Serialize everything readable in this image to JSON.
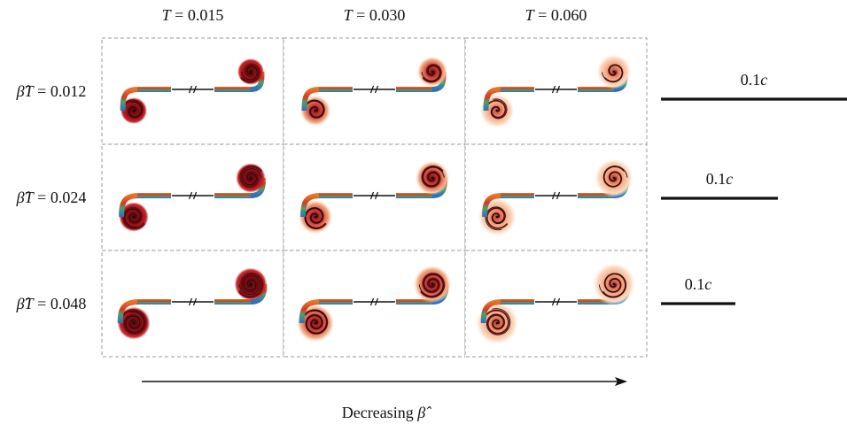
{
  "columns": [
    {
      "var": "T",
      "op": " = ",
      "value": "0.015"
    },
    {
      "var": "T",
      "op": " = ",
      "value": "0.030"
    },
    {
      "var": "T",
      "op": " = ",
      "value": "0.060"
    }
  ],
  "rows": [
    {
      "var": "β̂T",
      "op": " = ",
      "value": "0.012",
      "scale": {
        "num": "0.1",
        "unit": "c",
        "length_c": 0.1
      }
    },
    {
      "var": "β̂T",
      "op": " = ",
      "value": "0.024",
      "scale": {
        "num": "0.1",
        "unit": "c",
        "length_c": 0.1
      }
    },
    {
      "var": "β̂T",
      "op": " = ",
      "value": "0.048",
      "scale": {
        "num": "0.1",
        "unit": "c",
        "length_c": 0.1
      }
    }
  ],
  "arrow_caption": {
    "text": "Decreasing ",
    "symbol": "β̂"
  },
  "colors": {
    "vortex_core": "#b3141c",
    "vortex_dark": "#6e0a0f",
    "glow": "#f2b48a",
    "sheet_blue": "#2f6fc2",
    "sheet_green": "#4aa06a",
    "sheet_orange": "#e8742a",
    "frame": "#999999"
  }
}
